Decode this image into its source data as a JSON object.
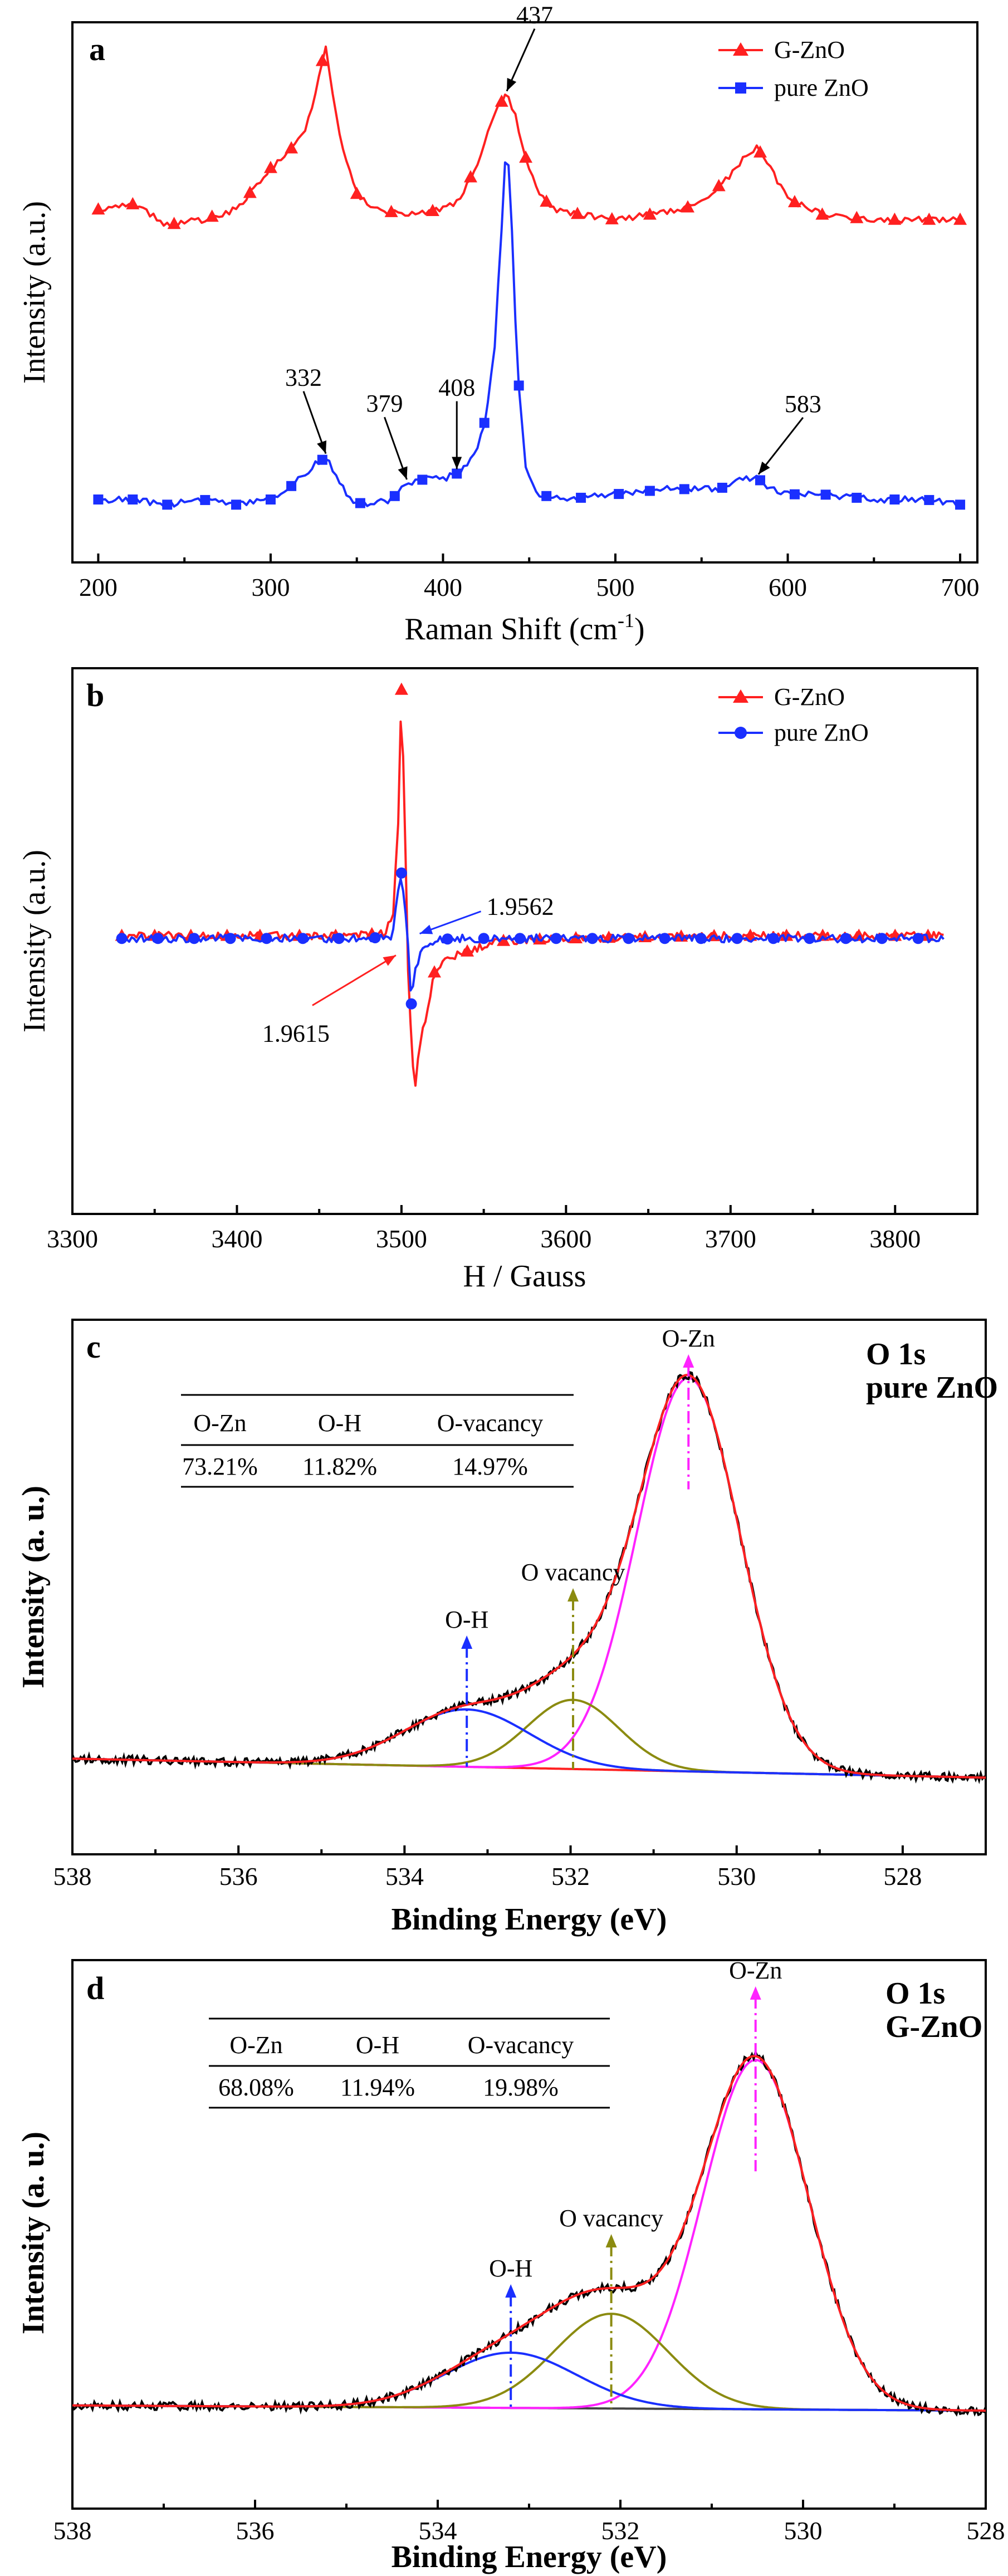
{
  "colors": {
    "g_zno": "#ff2020",
    "pure_zno": "#1a2fff",
    "raw": "#000000",
    "envelope": "#ff2020",
    "o_zn": "#ff22ff",
    "o_vac": "#8b8b10",
    "o_h": "#1a2fff",
    "baseline": "#ff2020",
    "baseline_d": "#444444"
  },
  "chart_data": [
    {
      "panel": "a",
      "type": "line",
      "xlabel_main": "Raman Shift (cm",
      "xlabel_sup": "-1",
      "xlabel_end": ")",
      "ylabel": "Intensity (a.u.)",
      "xlim": [
        185,
        710
      ],
      "ylim": [
        0,
        1
      ],
      "xticks": [
        200,
        300,
        400,
        500,
        600,
        700
      ],
      "xtick_labels": [
        "200",
        "300",
        "400",
        "500",
        "600",
        "700"
      ],
      "legend": [
        "G-ZnO",
        "pure ZnO"
      ],
      "series": [
        {
          "name": "G-ZnO",
          "marker": "triangle",
          "x": [
            200,
            220,
            240,
            260,
            280,
            290,
            300,
            310,
            320,
            326,
            332,
            338,
            344,
            350,
            360,
            380,
            400,
            410,
            420,
            426,
            432,
            437,
            442,
            448,
            455,
            465,
            480,
            500,
            520,
            540,
            555,
            565,
            575,
            582,
            590,
            600,
            620,
            650,
            680,
            700
          ],
          "y": [
            0.66,
            0.67,
            0.63,
            0.64,
            0.66,
            0.7,
            0.74,
            0.77,
            0.81,
            0.88,
            0.98,
            0.84,
            0.75,
            0.69,
            0.66,
            0.65,
            0.66,
            0.68,
            0.75,
            0.81,
            0.86,
            0.88,
            0.84,
            0.76,
            0.69,
            0.66,
            0.65,
            0.64,
            0.65,
            0.66,
            0.69,
            0.72,
            0.76,
            0.78,
            0.74,
            0.68,
            0.65,
            0.64,
            0.64,
            0.64
          ],
          "markers_x": [
            200,
            220,
            244,
            266,
            288,
            300,
            312,
            330,
            350,
            370,
            394,
            416,
            434,
            448,
            460,
            478,
            498,
            520,
            542,
            560,
            584,
            604,
            620,
            640,
            662,
            682,
            700
          ]
        },
        {
          "name": "pure ZnO",
          "marker": "square",
          "x": [
            200,
            220,
            240,
            260,
            280,
            300,
            310,
            320,
            326,
            332,
            338,
            345,
            355,
            370,
            379,
            390,
            400,
            408,
            415,
            420,
            425,
            430,
            434,
            437,
            440,
            443,
            448,
            455,
            470,
            500,
            530,
            560,
            575,
            583,
            590,
            600,
            620,
            650,
            680,
            700
          ],
          "y": [
            0.1,
            0.1,
            0.09,
            0.1,
            0.09,
            0.1,
            0.12,
            0.15,
            0.17,
            0.18,
            0.15,
            0.1,
            0.09,
            0.1,
            0.13,
            0.14,
            0.14,
            0.15,
            0.17,
            0.2,
            0.26,
            0.4,
            0.62,
            0.81,
            0.62,
            0.36,
            0.16,
            0.11,
            0.1,
            0.11,
            0.12,
            0.12,
            0.14,
            0.14,
            0.12,
            0.11,
            0.11,
            0.1,
            0.1,
            0.09
          ],
          "markers_x": [
            200,
            220,
            240,
            262,
            280,
            300,
            312,
            330,
            352,
            372,
            388,
            408,
            424,
            444,
            460,
            480,
            502,
            520,
            540,
            562,
            584,
            604,
            622,
            640,
            662,
            682,
            700
          ]
        }
      ],
      "annotations": [
        {
          "text": "437",
          "x": 437,
          "y": 0.88
        },
        {
          "text": "332",
          "x": 332,
          "y": 0.18
        },
        {
          "text": "379",
          "x": 379,
          "y": 0.13
        },
        {
          "text": "408",
          "x": 408,
          "y": 0.15
        },
        {
          "text": "583",
          "x": 583,
          "y": 0.14
        }
      ]
    },
    {
      "panel": "b",
      "type": "line",
      "xlabel": "H  / Gauss",
      "ylabel": "Intensity (a.u.)",
      "xlim": [
        3300,
        3850
      ],
      "ylim": [
        -1,
        1
      ],
      "xticks": [
        3300,
        3400,
        3500,
        3600,
        3700,
        3800
      ],
      "xtick_labels": [
        "3300",
        "3400",
        "3500",
        "3600",
        "3700",
        "3800"
      ],
      "legend": [
        "G-ZnO",
        "pure ZnO"
      ],
      "series": [
        {
          "name": "G-ZnO",
          "marker": "triangle",
          "x": [
            3330,
            3400,
            3470,
            3490,
            3495,
            3498,
            3500,
            3502,
            3504,
            3506,
            3508,
            3510,
            3515,
            3520,
            3530,
            3545,
            3560,
            3600,
            3700,
            3830
          ],
          "y": [
            0.02,
            0.02,
            0.02,
            0.03,
            0.1,
            0.45,
            0.96,
            0.45,
            -0.1,
            -0.4,
            -0.58,
            -0.44,
            -0.28,
            -0.12,
            -0.06,
            -0.03,
            0.0,
            0.01,
            0.02,
            0.02
          ],
          "markers_x": [
            3330,
            3350,
            3372,
            3394,
            3414,
            3438,
            3460,
            3482,
            3500,
            3520,
            3540,
            3562,
            3584,
            3606,
            3626,
            3648,
            3670,
            3690,
            3712,
            3734,
            3756,
            3778,
            3800,
            3820
          ]
        },
        {
          "name": "pure ZnO",
          "marker": "circle",
          "x": [
            3330,
            3400,
            3480,
            3494,
            3498,
            3500,
            3502,
            3504,
            3506,
            3508,
            3512,
            3520,
            3530,
            3600,
            3700,
            3830
          ],
          "y": [
            0.01,
            0.01,
            0.01,
            0.02,
            0.18,
            0.26,
            0.15,
            -0.02,
            -0.24,
            -0.12,
            -0.03,
            0.0,
            0.01,
            0.01,
            0.01,
            0.01
          ],
          "markers_x": [
            3330,
            3352,
            3374,
            3396,
            3418,
            3440,
            3462,
            3484,
            3500,
            3506,
            3528,
            3550,
            3572,
            3594,
            3616,
            3638,
            3660,
            3682,
            3704,
            3726,
            3748,
            3770,
            3792,
            3814
          ]
        }
      ],
      "annotations": [
        {
          "text": "1.9562",
          "color": "pure_zno",
          "x": 3507,
          "y": 0.02
        },
        {
          "text": "1.9615",
          "color": "g_zno",
          "x": 3500,
          "y": -0.05
        }
      ]
    },
    {
      "panel": "c",
      "type": "line",
      "title_line1": "O 1s",
      "title_line2": "pure ZnO",
      "xlabel": "Binding Energy (eV)",
      "ylabel": "Intensity (a. u.)",
      "xlim": [
        538,
        527
      ],
      "ylim": [
        0,
        1
      ],
      "xticks": [
        538,
        536,
        534,
        532,
        530,
        528
      ],
      "xtick_labels": [
        "538",
        "536",
        "534",
        "532",
        "530",
        "528"
      ],
      "table": {
        "headers": [
          "O-Zn",
          "O-H",
          "O-vacancy"
        ],
        "values": [
          "73.21%",
          "11.82%",
          "14.97%"
        ]
      },
      "components": [
        {
          "name": "O-Zn",
          "center": 530.58,
          "sigma": 0.62,
          "amp": 0.768,
          "color": "o_zn"
        },
        {
          "name": "O vacancy",
          "center": 531.97,
          "sigma": 0.55,
          "amp": 0.135,
          "color": "o_vac"
        },
        {
          "name": "O-H",
          "center": 533.25,
          "sigma": 0.75,
          "amp": 0.112,
          "color": "o_h"
        }
      ],
      "baseline": {
        "left": 0.165,
        "right": 0.128
      },
      "labels": [
        {
          "text": "O-Zn",
          "color": "o_zn",
          "x": 530.58
        },
        {
          "text": "O vacancy",
          "color": "o_vac",
          "x": 531.97
        },
        {
          "text": "O-H",
          "color": "o_h",
          "x": 533.25
        }
      ]
    },
    {
      "panel": "d",
      "type": "line",
      "title_line1": "O 1s",
      "title_line2": "G-ZnO",
      "xlabel": "Binding Energy (eV)",
      "ylabel": "Intensity (a. u.)",
      "xlim": [
        538,
        528
      ],
      "ylim": [
        0,
        1
      ],
      "xticks": [
        538,
        536,
        534,
        532,
        530,
        528
      ],
      "xtick_labels": [
        "538",
        "536",
        "534",
        "532",
        "530",
        "528"
      ],
      "table": {
        "headers": [
          "O-Zn",
          "O-H",
          "O-vacancy"
        ],
        "values": [
          "68.08%",
          "11.94%",
          "19.98%"
        ]
      },
      "components": [
        {
          "name": "O-Zn",
          "center": 530.52,
          "sigma": 0.58,
          "amp": 0.664,
          "color": "o_zn"
        },
        {
          "name": "O vacancy",
          "center": 532.1,
          "sigma": 0.62,
          "amp": 0.18,
          "color": "o_vac"
        },
        {
          "name": "O-H",
          "center": 533.2,
          "sigma": 0.72,
          "amp": 0.105,
          "color": "o_h"
        }
      ],
      "baseline": {
        "left": 0.175,
        "right": 0.165
      },
      "labels": [
        {
          "text": "O-Zn",
          "color": "o_zn",
          "x": 530.52
        },
        {
          "text": "O vacancy",
          "color": "o_vac",
          "x": 532.1
        },
        {
          "text": "O-H",
          "color": "o_h",
          "x": 533.2
        }
      ]
    }
  ]
}
